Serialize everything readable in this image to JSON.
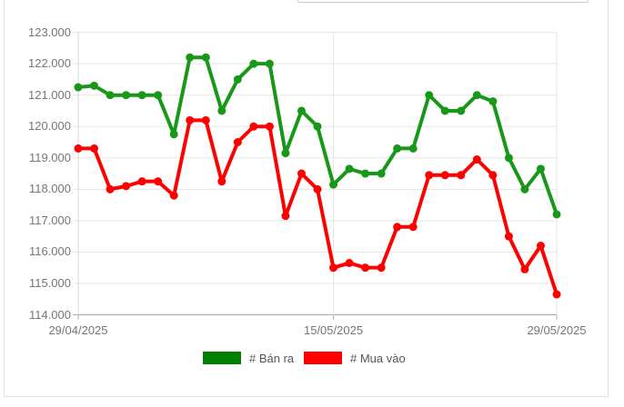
{
  "chart_data": {
    "type": "line",
    "title": "",
    "x_axis": {
      "num_points": 31,
      "tick_labels": [
        {
          "text": "29/04/2025",
          "point_index": 0
        },
        {
          "text": "15/05/2025",
          "point_index": 16
        },
        {
          "text": "29/05/2025",
          "point_index": 30
        }
      ]
    },
    "y_axis": {
      "min": 114,
      "max": 123,
      "step": 1,
      "tick_labels": [
        "123.000",
        "122.000",
        "121.000",
        "120.000",
        "119.000",
        "118.000",
        "117.000",
        "116.000",
        "115.000",
        "114.000"
      ]
    },
    "grid": true,
    "legend_position": "bottom",
    "series": [
      {
        "name": "# Bán ra",
        "color": "#189818",
        "legend_color": "#008000",
        "values": [
          121.25,
          121.3,
          121.0,
          121.0,
          121.0,
          121.0,
          119.75,
          122.2,
          122.2,
          120.5,
          121.5,
          122.0,
          122.0,
          119.15,
          120.5,
          120.0,
          118.15,
          118.65,
          118.5,
          118.5,
          119.3,
          119.3,
          121.0,
          120.5,
          120.5,
          121.0,
          120.8,
          119.0,
          118.0,
          118.65,
          117.2
        ]
      },
      {
        "name": "# Mua vào",
        "color": "#ff0000",
        "legend_color": "#ff0000",
        "values": [
          119.3,
          119.3,
          118.0,
          118.1,
          118.25,
          118.25,
          117.8,
          120.2,
          120.2,
          118.25,
          119.5,
          120.0,
          120.0,
          117.15,
          118.5,
          118.0,
          115.5,
          115.65,
          115.5,
          115.5,
          116.8,
          116.8,
          118.45,
          118.45,
          118.45,
          118.95,
          118.45,
          116.5,
          115.45,
          116.2,
          114.65
        ]
      }
    ],
    "style": {
      "grid_color": "#e5e5e5",
      "axis_color": "#a8a8a8",
      "axis_left_color": "#d9d9d9",
      "label_color": "#757575",
      "legend_text_color": "#555555",
      "panel_border_color": "#e3e3e3"
    }
  }
}
